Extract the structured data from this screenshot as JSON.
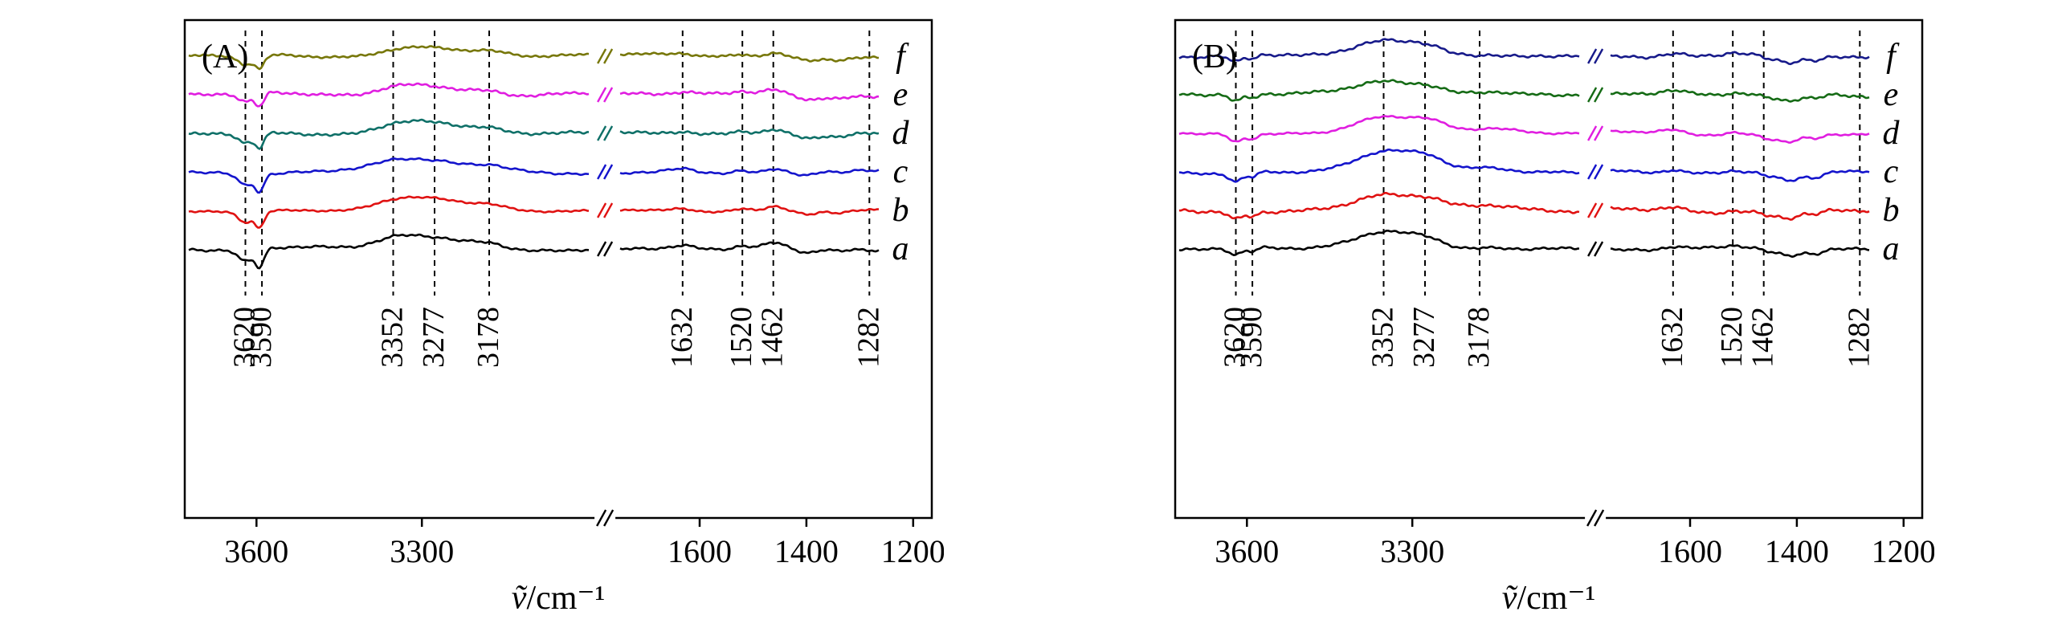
{
  "figure": {
    "background": "#ffffff"
  },
  "chart_data": {
    "type": "line",
    "title": "",
    "xlabel": "ṽ/cm⁻¹",
    "xlabel_var": "ṽ",
    "xlabel_rest": "/cm⁻¹",
    "x_axis": {
      "left_domain": [
        3730,
        2985
      ],
      "right_domain": [
        1760,
        1165
      ],
      "left_end_fraction": 0.55,
      "right_start_fraction": 0.575,
      "has_break": true,
      "ticks": [
        "3600",
        "3300",
        "1600",
        "1400",
        "1200"
      ],
      "tick_values": [
        3600,
        3300,
        1600,
        1400,
        1200
      ]
    },
    "marked_wavenumbers": [
      3620,
      3590,
      3352,
      3277,
      3178,
      1632,
      1520,
      1462,
      1282
    ],
    "panels": [
      {
        "label": "(A)",
        "series": [
          {
            "name": "a",
            "color": "#000000",
            "offset": 300,
            "scale": 1.15
          },
          {
            "name": "b",
            "color": "#e01212",
            "offset": 252,
            "scale": 1.0
          },
          {
            "name": "c",
            "color": "#1414cc",
            "offset": 204,
            "scale": 1.05
          },
          {
            "name": "d",
            "color": "#0f7068",
            "offset": 156,
            "scale": 0.9
          },
          {
            "name": "e",
            "color": "#e01ee0",
            "offset": 108,
            "scale": 0.85
          },
          {
            "name": "f",
            "color": "#77770a",
            "offset": 60,
            "scale": 0.8
          }
        ],
        "features": [
          {
            "center": 3620,
            "amp": -13,
            "sigma": 13
          },
          {
            "center": 3594,
            "amp": -19,
            "sigma": 8
          },
          {
            "center": 3352,
            "amp": 9,
            "sigma": 38
          },
          {
            "center": 3280,
            "amp": 12,
            "sigma": 55
          },
          {
            "center": 3178,
            "amp": 5,
            "sigma": 28
          },
          {
            "center": 1632,
            "amp": 4,
            "sigma": 22
          },
          {
            "center": 1520,
            "amp": 3,
            "sigma": 15
          },
          {
            "center": 1462,
            "amp": 5,
            "sigma": 16
          },
          {
            "center": 1398,
            "amp": -6,
            "sigma": 20
          },
          {
            "center": 1340,
            "amp": -3,
            "sigma": 15
          }
        ]
      },
      {
        "label": "(B)",
        "series": [
          {
            "name": "a",
            "color": "#000000",
            "offset": 300,
            "scale": 1.0
          },
          {
            "name": "b",
            "color": "#e01212",
            "offset": 252,
            "scale": 1.0
          },
          {
            "name": "c",
            "color": "#1414cc",
            "offset": 204,
            "scale": 1.25
          },
          {
            "name": "d",
            "color": "#e01ee0",
            "offset": 156,
            "scale": 1.1
          },
          {
            "name": "e",
            "color": "#156b15",
            "offset": 108,
            "scale": 0.9
          },
          {
            "name": "f",
            "color": "#171a8a",
            "offset": 60,
            "scale": 0.95
          }
        ],
        "features": [
          {
            "center": 3620,
            "amp": -9,
            "sigma": 12
          },
          {
            "center": 3590,
            "amp": -5,
            "sigma": 9
          },
          {
            "center": 3352,
            "amp": 20,
            "sigma": 55
          },
          {
            "center": 3270,
            "amp": 9,
            "sigma": 30
          },
          {
            "center": 3150,
            "amp": 4,
            "sigma": 35
          },
          {
            "center": 1632,
            "amp": 4,
            "sigma": 20
          },
          {
            "center": 1520,
            "amp": 2,
            "sigma": 14
          },
          {
            "center": 1455,
            "amp": -4,
            "sigma": 14
          },
          {
            "center": 1415,
            "amp": -9,
            "sigma": 20
          },
          {
            "center": 1365,
            "amp": -5,
            "sigma": 14
          }
        ]
      }
    ]
  }
}
